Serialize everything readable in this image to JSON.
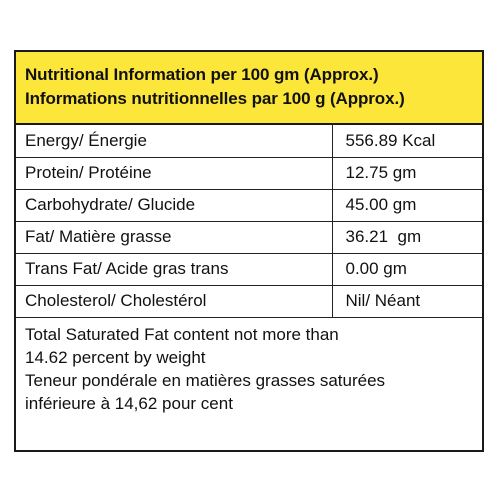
{
  "header": {
    "line_en": "Nutritional Information per 100 gm (Approx.)",
    "line_fr": "Informations nutritionnelles par 100 g (Approx.)"
  },
  "rows": [
    {
      "name": "Energy/ Énergie",
      "value": "556.89 Kcal"
    },
    {
      "name": "Protein/ Protéine",
      "value": "12.75 gm"
    },
    {
      "name": "Carbohydrate/ Glucide",
      "value": "45.00 gm"
    },
    {
      "name": "Fat/ Matière grasse",
      "value": "36.21  gm"
    },
    {
      "name": "Trans Fat/ Acide gras trans",
      "value": "0.00 gm"
    },
    {
      "name": "Cholesterol/ Cholestérol",
      "value": "Nil/ Néant"
    }
  ],
  "footer": {
    "lines": [
      "Total Saturated Fat content not more than",
      "14.62 percent by weight",
      "Teneur pondérale en matières grasses saturées",
      "inférieure à 14,62 pour cent"
    ]
  },
  "colors": {
    "header_background": "#fde63a",
    "border": "#1a1a1a"
  }
}
